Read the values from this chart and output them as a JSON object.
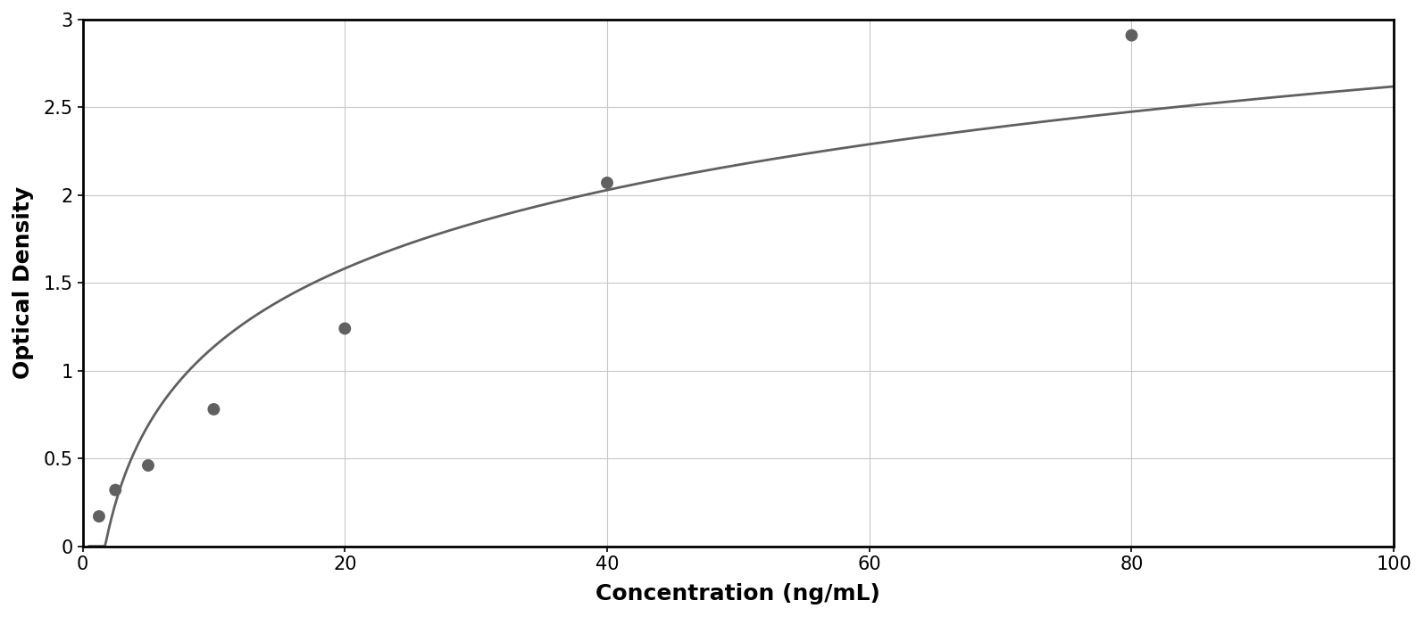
{
  "x_data": [
    1.25,
    2.5,
    5,
    10,
    20,
    40,
    80
  ],
  "y_data": [
    0.17,
    0.32,
    0.46,
    0.78,
    1.24,
    2.07,
    2.91
  ],
  "xlabel": "Concentration (ng/mL)",
  "ylabel": "Optical Density",
  "xlim": [
    0,
    100
  ],
  "ylim": [
    0,
    3
  ],
  "xticks": [
    0,
    20,
    40,
    60,
    80,
    100
  ],
  "yticks": [
    0,
    0.5,
    1.0,
    1.5,
    2.0,
    2.5,
    3.0
  ],
  "ytick_labels": [
    "0",
    "0.5",
    "1",
    "1.5",
    "2",
    "2.5",
    "3"
  ],
  "data_color": "#606060",
  "line_color": "#606060",
  "marker_size": 100,
  "line_width": 2.0,
  "background_color": "#ffffff",
  "grid_color": "#c8c8c8",
  "xlabel_fontsize": 18,
  "ylabel_fontsize": 18,
  "tick_fontsize": 15,
  "xlabel_fontweight": "bold",
  "ylabel_fontweight": "bold",
  "figsize": [
    15.95,
    6.92
  ],
  "dpi": 100
}
